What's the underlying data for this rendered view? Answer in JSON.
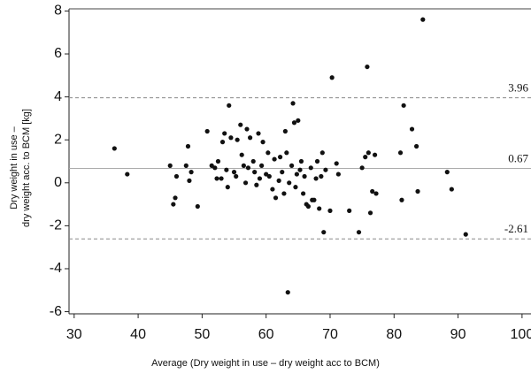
{
  "chart_data": {
    "type": "scatter",
    "y_label": [
      "Dry weight in use –",
      "dry weight acc. to BCM [kg]"
    ],
    "x_label": "Average (Dry weight in use – dry weight acc to BCM)",
    "color": "#111111",
    "xlim": [
      29.2,
      101.4
    ],
    "ylim": [
      -6.1,
      8.1
    ],
    "xticks": [
      30,
      40,
      50,
      60,
      70,
      80,
      90,
      100
    ],
    "yticks": [
      -6,
      -4,
      -2,
      0,
      2,
      4,
      6,
      8
    ],
    "reference_lines": [
      {
        "value": 3.96,
        "style": "dashed"
      },
      {
        "value": 0.67,
        "style": "solid"
      },
      {
        "value": -2.61,
        "style": "dashed"
      }
    ],
    "x": [
      36.3,
      38.3,
      45,
      45.5,
      45.8,
      46,
      47.5,
      47.8,
      48,
      48.3,
      49.3,
      50.8,
      51.5,
      52,
      52.3,
      52.5,
      53,
      53.2,
      53.5,
      53.8,
      54,
      54.2,
      54.5,
      55,
      55.3,
      55.5,
      56,
      56.2,
      56.5,
      56.8,
      57,
      57.2,
      57.5,
      58,
      58.2,
      58.5,
      58.8,
      59,
      59.3,
      59.5,
      60,
      60.3,
      60.5,
      61,
      61.3,
      61.5,
      62,
      62.2,
      62.5,
      62.8,
      63,
      63.2,
      63.4,
      63.6,
      64,
      64.2,
      64.4,
      64.6,
      64.8,
      65,
      65.3,
      65.5,
      65.8,
      66,
      66.3,
      66.6,
      67,
      67.2,
      67.5,
      67.8,
      68,
      68.3,
      68.6,
      68.8,
      69,
      69.3,
      70,
      70.3,
      71,
      71.3,
      73,
      74.5,
      75,
      75.5,
      75.8,
      76,
      76.3,
      76.6,
      77,
      77.2,
      81,
      81.2,
      81.5,
      82.8,
      83.5,
      83.7,
      84.5,
      88.3,
      89,
      91.2
    ],
    "values": [
      1.6,
      0.4,
      0.8,
      -1,
      -0.7,
      0.3,
      0.8,
      1.7,
      0.1,
      0.5,
      -1.1,
      2.4,
      0.8,
      0.7,
      0.2,
      1,
      0.2,
      1.9,
      2.3,
      0.6,
      -0.2,
      3.6,
      2.1,
      0.5,
      0.3,
      2,
      2.7,
      1.3,
      0.8,
      0,
      2.5,
      0.7,
      2.1,
      1,
      0.5,
      -0.1,
      2.3,
      0.2,
      0.8,
      1.9,
      0.4,
      1.4,
      0.3,
      -0.3,
      1.1,
      -0.7,
      0.1,
      1.2,
      0.5,
      -0.5,
      2.4,
      1.4,
      -5.1,
      0,
      0.8,
      3.7,
      2.8,
      -0.2,
      0.4,
      2.9,
      0.6,
      1,
      -0.5,
      0.3,
      -1,
      -1.1,
      0.7,
      -0.8,
      -0.8,
      0.2,
      1,
      -1.2,
      0.3,
      1.4,
      -2.3,
      0.6,
      -1.3,
      4.9,
      0.9,
      0.4,
      -1.3,
      -2.3,
      0.7,
      1.2,
      5.4,
      1.4,
      -1.4,
      -0.4,
      1.3,
      -0.5,
      1.4,
      -0.8,
      3.6,
      2.5,
      1.7,
      -0.4,
      7.6,
      0.5,
      -0.3,
      -2.4
    ]
  }
}
